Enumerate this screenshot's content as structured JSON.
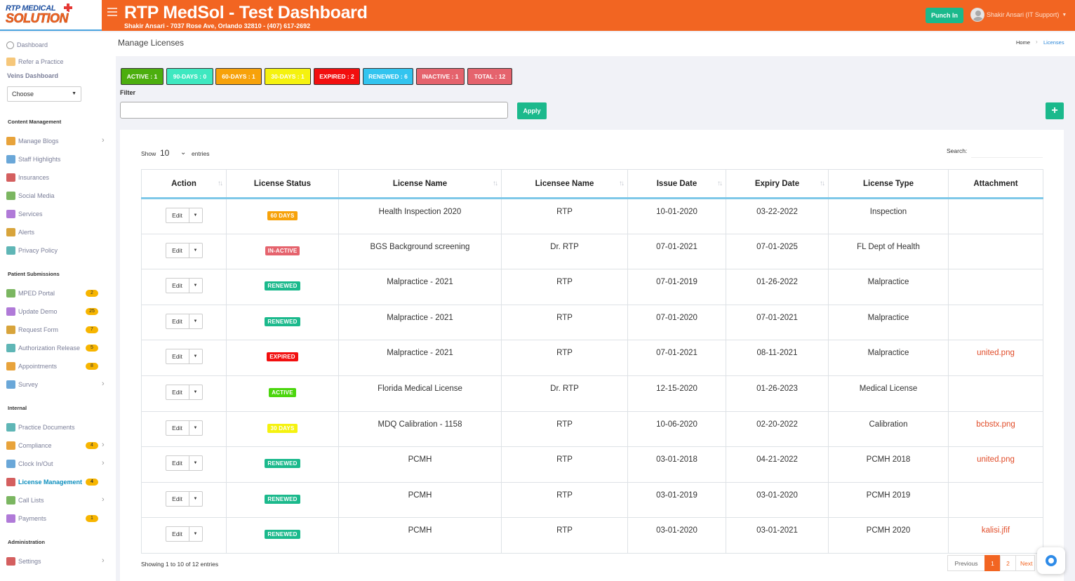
{
  "header": {
    "logo_line1": "RTP MEDICAL",
    "logo_line2": "SOLUTION",
    "title": "RTP MedSol - Test Dashboard",
    "subtitle": "Shakir Ansari - 7037 Rose Ave, Orlando 32810 - (407) 617-2692",
    "punch_label": "Punch In",
    "user_name": "Shakir Ansari (IT Support)",
    "accent_color": "#f26522"
  },
  "sidebar": {
    "top_items": [
      {
        "label": "Dashboard",
        "icon": "dashboard-icon"
      },
      {
        "label": "Refer a Practice",
        "icon": "refer-icon"
      }
    ],
    "veins_label": "Veins Dashboard",
    "veins_select": "Choose",
    "sections": [
      {
        "title": "Content Management",
        "items": [
          {
            "label": "Manage Blogs",
            "badge": "",
            "chevron": true
          },
          {
            "label": "Staff Highlights",
            "badge": "",
            "chevron": false
          },
          {
            "label": "Insurances",
            "badge": "",
            "chevron": false
          },
          {
            "label": "Social Media",
            "badge": "",
            "chevron": false
          },
          {
            "label": "Services",
            "badge": "",
            "chevron": false
          },
          {
            "label": "Alerts",
            "badge": "",
            "chevron": false
          },
          {
            "label": "Privacy Policy",
            "badge": "",
            "chevron": false
          }
        ]
      },
      {
        "title": "Patient Submissions",
        "items": [
          {
            "label": "MPED Portal",
            "badge": "2",
            "chevron": false
          },
          {
            "label": "Update Demo",
            "badge": "25",
            "chevron": false
          },
          {
            "label": "Request Form",
            "badge": "7",
            "chevron": false
          },
          {
            "label": "Authorization Release",
            "badge": "5",
            "chevron": false
          },
          {
            "label": "Appointments",
            "badge": "8",
            "chevron": false
          },
          {
            "label": "Survey",
            "badge": "",
            "chevron": true
          }
        ]
      },
      {
        "title": "Internal",
        "items": [
          {
            "label": "Practice Documents",
            "badge": "",
            "chevron": false
          },
          {
            "label": "Compliance",
            "badge": "4",
            "chevron": true
          },
          {
            "label": "Clock In/Out",
            "badge": "",
            "chevron": true
          },
          {
            "label": "License Management",
            "badge": "4",
            "chevron": false,
            "active": true
          },
          {
            "label": "Call Lists",
            "badge": "",
            "chevron": true
          },
          {
            "label": "Payments",
            "badge": "1",
            "chevron": false
          }
        ]
      },
      {
        "title": "Administration",
        "items": [
          {
            "label": "Settings",
            "badge": "",
            "chevron": true
          }
        ]
      }
    ]
  },
  "page": {
    "title": "Manage Licenses",
    "breadcrumb_home": "Home",
    "breadcrumb_current": "Licenses"
  },
  "stats": [
    {
      "label": "ACTIVE : 1",
      "color": "#4cae0e"
    },
    {
      "label": "90-DAYS : 0",
      "color": "#3ee8c0"
    },
    {
      "label": "60-DAYS : 1",
      "color": "#f7a20a"
    },
    {
      "label": "30-DAYS : 1",
      "color": "#f5f20f"
    },
    {
      "label": "EXPIRED : 2",
      "color": "#f20f0f"
    },
    {
      "label": "RENEWED : 6",
      "color": "#32c4ef"
    },
    {
      "label": "INACTIVE : 1",
      "color": "#e5636d"
    },
    {
      "label": "TOTAL : 12",
      "color": "#e5636d"
    }
  ],
  "filter": {
    "label": "Filter",
    "value": "",
    "apply_label": "Apply",
    "add_label": "+"
  },
  "table": {
    "show_label": "Show",
    "show_value": "10",
    "entries_label": "entries",
    "search_label": "Search:",
    "columns": [
      "Action",
      "License Status",
      "License Name",
      "Licensee Name",
      "Issue Date",
      "Expiry Date",
      "License Type",
      "Attachment"
    ],
    "edit_label": "Edit",
    "rows": [
      {
        "status": "60 DAYS",
        "status_color": "#f7a20a",
        "name": "Health Inspection 2020",
        "licensee": "RTP",
        "issue": "10-01-2020",
        "expiry": "03-22-2022",
        "type": "Inspection",
        "attachment": ""
      },
      {
        "status": "IN-ACTIVE",
        "status_color": "#e5636d",
        "name": "BGS Background screening",
        "licensee": "Dr. RTP",
        "issue": "07-01-2021",
        "expiry": "07-01-2025",
        "type": "FL Dept of Health",
        "attachment": ""
      },
      {
        "status": "RENEWED",
        "status_color": "#1bb98c",
        "name": "Malpractice - 2021",
        "licensee": "RTP",
        "issue": "07-01-2019",
        "expiry": "01-26-2022",
        "type": "Malpractice",
        "attachment": ""
      },
      {
        "status": "RENEWED",
        "status_color": "#1bb98c",
        "name": "Malpractice - 2021",
        "licensee": "RTP",
        "issue": "07-01-2020",
        "expiry": "07-01-2021",
        "type": "Malpractice",
        "attachment": ""
      },
      {
        "status": "EXPIRED",
        "status_color": "#f20f0f",
        "name": "Malpractice - 2021",
        "licensee": "RTP",
        "issue": "07-01-2021",
        "expiry": "08-11-2021",
        "type": "Malpractice",
        "attachment": "united.png"
      },
      {
        "status": "ACTIVE",
        "status_color": "#4cd60e",
        "name": "Florida Medical License",
        "licensee": "Dr. RTP",
        "issue": "12-15-2020",
        "expiry": "01-26-2023",
        "type": "Medical License",
        "attachment": ""
      },
      {
        "status": "30 DAYS",
        "status_color": "#f5f20f",
        "name": "MDQ Calibration - 1158",
        "licensee": "RTP",
        "issue": "10-06-2020",
        "expiry": "02-20-2022",
        "type": "Calibration",
        "attachment": "bcbstx.png"
      },
      {
        "status": "RENEWED",
        "status_color": "#1bb98c",
        "name": "PCMH",
        "licensee": "RTP",
        "issue": "03-01-2018",
        "expiry": "04-21-2022",
        "type": "PCMH 2018",
        "attachment": "united.png"
      },
      {
        "status": "RENEWED",
        "status_color": "#1bb98c",
        "name": "PCMH",
        "licensee": "RTP",
        "issue": "03-01-2019",
        "expiry": "03-01-2020",
        "type": "PCMH 2019",
        "attachment": ""
      },
      {
        "status": "RENEWED",
        "status_color": "#1bb98c",
        "name": "PCMH",
        "licensee": "RTP",
        "issue": "03-01-2020",
        "expiry": "03-01-2021",
        "type": "PCMH 2020",
        "attachment": "kalisi.jfif"
      }
    ],
    "info": "Showing 1 to 10 of 12 entries",
    "pagination": {
      "previous": "Previous",
      "pages": [
        "1",
        "2"
      ],
      "current": "1",
      "next": "Next"
    }
  }
}
